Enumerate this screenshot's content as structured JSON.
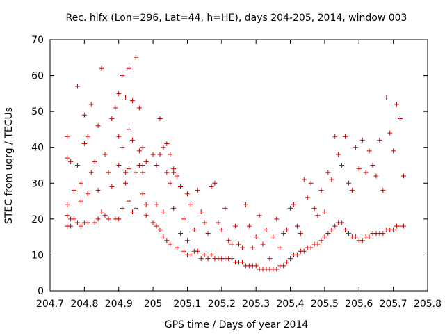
{
  "chart_data": {
    "type": "scatter",
    "title": "Rec. hlfx (Lon=296, Lat=44, h=HE), days 204-205, 2014, window 003",
    "xlabel": "GPS time / Days of year 2014",
    "ylabel": "STEC from uqrg / TECUs",
    "xlim": [
      204.7,
      205.8
    ],
    "ylim": [
      0,
      70
    ],
    "xticks": [
      204.7,
      204.8,
      204.9,
      205,
      205.1,
      205.2,
      205.3,
      205.4,
      205.5,
      205.6,
      205.7,
      205.8
    ],
    "xtick_labels": [
      "204.7",
      "204.8",
      "204.9",
      "205",
      "205.1",
      "205.2",
      "205.3",
      "205.4",
      "205.5",
      "205.6",
      "205.7",
      "205.8"
    ],
    "yticks": [
      0,
      10,
      20,
      30,
      40,
      50,
      60,
      70
    ],
    "ytick_labels": [
      "0",
      "10",
      "20",
      "30",
      "40",
      "50",
      "60",
      "70"
    ],
    "marker": "+",
    "color": "#cc0000",
    "grid": false,
    "legend": "none",
    "x": [
      204.75,
      204.75,
      204.75,
      204.75,
      204.75,
      204.76,
      204.76,
      204.76,
      204.77,
      204.77,
      204.78,
      204.78,
      204.78,
      204.79,
      204.79,
      204.79,
      204.8,
      204.8,
      204.8,
      204.81,
      204.81,
      204.81,
      204.82,
      204.82,
      204.83,
      204.83,
      204.84,
      204.84,
      204.84,
      204.85,
      204.85,
      204.86,
      204.86,
      204.87,
      204.87,
      204.88,
      204.88,
      204.89,
      204.89,
      204.9,
      204.9,
      204.9,
      204.9,
      204.91,
      204.91,
      204.91,
      204.92,
      204.92,
      204.93,
      204.93,
      204.93,
      204.94,
      204.94,
      204.94,
      204.95,
      204.95,
      204.95,
      204.96,
      204.96,
      204.97,
      204.97,
      204.98,
      204.98,
      204.98,
      205.0,
      205.0,
      205.01,
      205.01,
      205.01,
      205.02,
      205.02,
      205.03,
      205.03,
      205.03,
      205.04,
      205.04,
      205.05,
      205.05,
      205.05,
      205.06,
      205.06,
      205.07,
      205.07,
      205.08,
      205.08,
      205.09,
      205.09,
      205.1,
      205.1,
      205.1,
      205.11,
      205.11,
      205.12,
      205.12,
      205.13,
      205.13,
      205.14,
      205.14,
      205.15,
      205.15,
      205.16,
      205.16,
      205.17,
      205.17,
      205.18,
      205.18,
      205.19,
      205.19,
      205.2,
      205.2,
      205.21,
      205.21,
      205.22,
      205.22,
      205.23,
      205.23,
      205.24,
      205.24,
      205.25,
      205.25,
      205.26,
      205.26,
      205.27,
      205.27,
      205.28,
      205.28,
      205.29,
      205.29,
      205.3,
      205.3,
      205.31,
      205.31,
      205.32,
      205.32,
      205.33,
      205.33,
      205.34,
      205.34,
      205.35,
      205.35,
      205.36,
      205.36,
      205.37,
      205.37,
      205.38,
      205.38,
      205.39,
      205.39,
      205.4,
      205.4,
      205.41,
      205.41,
      205.42,
      205.42,
      205.43,
      205.43,
      205.44,
      205.44,
      205.45,
      205.45,
      205.46,
      205.46,
      205.47,
      205.47,
      205.48,
      205.48,
      205.49,
      205.49,
      205.5,
      205.5,
      205.51,
      205.51,
      205.52,
      205.52,
      205.53,
      205.53,
      205.54,
      205.54,
      205.55,
      205.55,
      205.56,
      205.56,
      205.57,
      205.57,
      205.58,
      205.58,
      205.59,
      205.59,
      205.6,
      205.6,
      205.61,
      205.61,
      205.62,
      205.62,
      205.63,
      205.63,
      205.64,
      205.64,
      205.65,
      205.65,
      205.66,
      205.66,
      205.67,
      205.67,
      205.68,
      205.68,
      205.69,
      205.69,
      205.7,
      205.7,
      205.71,
      205.71,
      205.72,
      205.72,
      205.73,
      205.73,
      204.97,
      204.97,
      204.96,
      204.93,
      204.92,
      205.04,
      205.02,
      205.06
    ],
    "y": [
      43,
      37,
      24,
      21,
      18,
      36,
      20,
      18,
      28,
      20,
      57,
      35,
      19,
      30,
      25,
      18,
      49,
      41,
      19,
      43,
      27,
      19,
      52,
      33,
      36,
      19,
      46,
      28,
      20,
      62,
      22,
      38,
      21,
      33,
      20,
      48,
      29,
      51,
      20,
      55,
      43,
      35,
      20,
      60,
      40,
      23,
      54,
      30,
      62,
      45,
      25,
      53,
      42,
      22,
      65,
      33,
      23,
      51,
      35,
      40,
      27,
      36,
      24,
      21,
      38,
      19,
      35,
      24,
      18,
      48,
      17,
      40,
      22,
      15,
      41,
      14,
      38,
      30,
      13,
      33,
      23,
      32,
      12,
      29,
      16,
      20,
      11,
      27,
      14,
      10,
      24,
      10,
      17,
      11,
      28,
      11,
      22,
      9,
      19,
      10,
      16,
      9,
      29,
      10,
      30,
      9,
      19,
      9,
      17,
      9,
      23,
      9,
      14,
      9,
      13,
      9,
      18,
      8,
      13,
      8,
      12,
      8,
      24,
      7,
      18,
      7,
      12,
      7,
      15,
      7,
      21,
      6,
      13,
      6,
      17,
      6,
      9,
      6,
      15,
      6,
      20,
      6,
      12,
      7,
      16,
      7,
      17,
      8,
      23,
      9,
      24,
      10,
      18,
      10,
      16,
      11,
      31,
      11,
      26,
      12,
      30,
      12,
      23,
      13,
      21,
      13,
      28,
      14,
      22,
      15,
      33,
      16,
      31,
      17,
      43,
      18,
      38,
      19,
      35,
      19,
      43,
      17,
      30,
      16,
      28,
      15,
      40,
      15,
      34,
      14,
      42,
      14,
      33,
      15,
      39,
      15,
      35,
      16,
      32,
      16,
      42,
      16,
      28,
      16,
      54,
      17,
      44,
      17,
      39,
      17,
      52,
      18,
      48,
      18,
      32,
      18,
      35,
      33,
      39,
      34,
      33,
      33,
      38,
      34
    ]
  }
}
